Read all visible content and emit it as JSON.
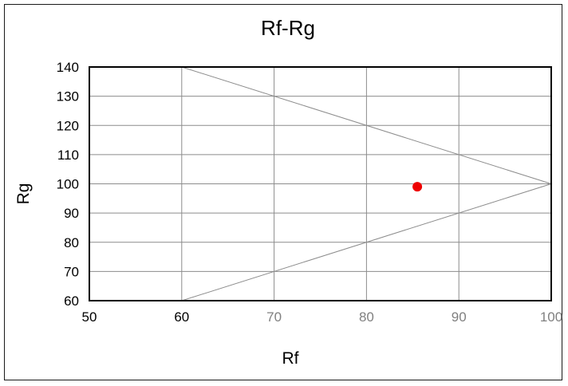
{
  "chart_data": {
    "type": "scatter",
    "title": "Rf-Rg",
    "xlabel": "Rf",
    "ylabel": "Rg",
    "xlim": [
      50,
      100
    ],
    "ylim": [
      60,
      140
    ],
    "xticks": [
      50,
      60,
      70,
      80,
      90,
      100
    ],
    "yticks": [
      60,
      70,
      80,
      90,
      100,
      110,
      120,
      130,
      140
    ],
    "grid": true,
    "boundary_lines": [
      {
        "x": [
          60,
          100
        ],
        "y": [
          140,
          100
        ]
      },
      {
        "x": [
          60,
          100
        ],
        "y": [
          60,
          100
        ]
      }
    ],
    "series": [
      {
        "x": [
          85.5
        ],
        "y": [
          99
        ],
        "color": "#ee0000"
      }
    ]
  },
  "colors": {
    "grid": "#8c8c8c",
    "plot_border": "#000000",
    "point": "#ee0000",
    "muted_tick": "#808080"
  }
}
